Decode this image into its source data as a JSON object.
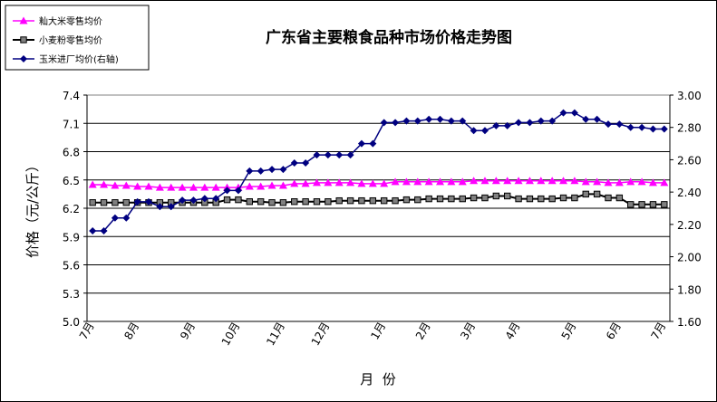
{
  "chart_data": {
    "type": "line",
    "title": "广东省主要粮食品种市场价格走势图",
    "xlabel": "月  份",
    "ylabel": "价格（元/公斤）",
    "ylim": [
      5.0,
      7.4
    ],
    "y_ticks": [
      "7.4",
      "7.1",
      "6.8",
      "6.5",
      "6.2",
      "5.9",
      "5.6",
      "5.3",
      "5.0"
    ],
    "y2lim": [
      1.6,
      3.0
    ],
    "y2_ticks": [
      "3.00",
      "2.80",
      "2.60",
      "2.40",
      "2.20",
      "2.00",
      "1.80",
      "1.60"
    ],
    "month_labels": [
      "7月",
      "8月",
      "9月",
      "10月",
      "11月",
      "12月",
      "1月",
      "2月",
      "3月",
      "4月",
      "5月",
      "6月",
      "7月"
    ],
    "legend_position": "top-left",
    "grid": "horizontal",
    "series": [
      {
        "name": "籼大米零售均价",
        "axis": "left",
        "color": "#ff00ff",
        "marker": "triangle",
        "values": [
          6.45,
          6.45,
          6.44,
          6.44,
          6.43,
          6.43,
          6.42,
          6.42,
          6.42,
          6.42,
          6.42,
          6.42,
          6.42,
          6.42,
          6.43,
          6.43,
          6.44,
          6.44,
          6.46,
          6.46,
          6.47,
          6.47,
          6.47,
          6.47,
          6.46,
          6.46,
          6.46,
          6.48,
          6.48,
          6.48,
          6.48,
          6.48,
          6.48,
          6.48,
          6.49,
          6.49,
          6.49,
          6.49,
          6.49,
          6.49,
          6.49,
          6.49,
          6.49,
          6.49,
          6.48,
          6.48,
          6.47,
          6.47,
          6.48,
          6.48,
          6.47,
          6.47
        ]
      },
      {
        "name": "小麦粉零售均价",
        "axis": "left",
        "color": "#000000",
        "marker": "square",
        "values": [
          6.26,
          6.26,
          6.26,
          6.26,
          6.26,
          6.26,
          6.26,
          6.26,
          6.26,
          6.26,
          6.26,
          6.26,
          6.29,
          6.29,
          6.27,
          6.27,
          6.26,
          6.26,
          6.27,
          6.27,
          6.27,
          6.27,
          6.28,
          6.28,
          6.28,
          6.28,
          6.28,
          6.28,
          6.29,
          6.29,
          6.3,
          6.3,
          6.3,
          6.3,
          6.31,
          6.31,
          6.33,
          6.33,
          6.3,
          6.3,
          6.3,
          6.3,
          6.31,
          6.31,
          6.35,
          6.35,
          6.31,
          6.31,
          6.24,
          6.24,
          6.24,
          6.24
        ]
      },
      {
        "name": "玉米进厂均价(右轴)",
        "axis": "right",
        "color": "#000080",
        "marker": "diamond",
        "values": [
          2.16,
          2.16,
          2.24,
          2.24,
          2.34,
          2.34,
          2.31,
          2.31,
          2.35,
          2.35,
          2.36,
          2.36,
          2.41,
          2.41,
          2.53,
          2.53,
          2.54,
          2.54,
          2.58,
          2.58,
          2.63,
          2.63,
          2.63,
          2.63,
          2.7,
          2.7,
          2.83,
          2.83,
          2.84,
          2.84,
          2.85,
          2.85,
          2.84,
          2.84,
          2.78,
          2.78,
          2.81,
          2.81,
          2.83,
          2.83,
          2.84,
          2.84,
          2.89,
          2.89,
          2.85,
          2.85,
          2.82,
          2.82,
          2.8,
          2.8,
          2.79,
          2.79
        ]
      }
    ]
  }
}
